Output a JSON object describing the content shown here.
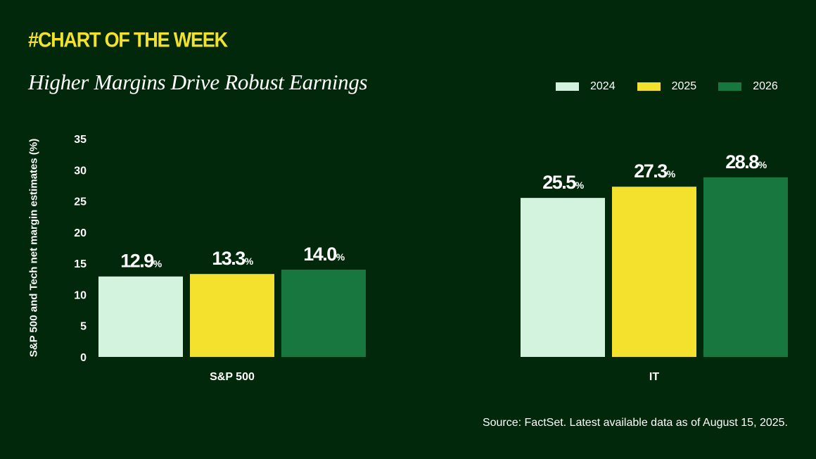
{
  "header": {
    "tag": "#CHART OF THE WEEK",
    "title": "Higher Margins Drive Robust Earnings"
  },
  "source": "Source: FactSet. Latest available data as of August 15, 2025.",
  "colors": {
    "background": "#02280b",
    "accent": "#f4e12d",
    "series": [
      "#d3f3df",
      "#f4e12d",
      "#18773e"
    ]
  },
  "chart_data": {
    "type": "bar",
    "title": "Higher Margins Drive Robust Earnings",
    "xlabel": "",
    "ylabel": "S&P 500 and Tech net margin estimates (%)",
    "categories": [
      "S&P 500",
      "IT"
    ],
    "series": [
      {
        "name": "2024",
        "values": [
          12.9,
          25.5
        ]
      },
      {
        "name": "2025",
        "values": [
          13.3,
          27.3
        ]
      },
      {
        "name": "2026",
        "values": [
          14.0,
          28.8
        ]
      }
    ],
    "ylim": [
      0,
      35
    ],
    "yticks": [
      0,
      5,
      10,
      15,
      20,
      25,
      30,
      35
    ],
    "value_suffix": "%",
    "grid": false,
    "legend_position": "top-right"
  }
}
